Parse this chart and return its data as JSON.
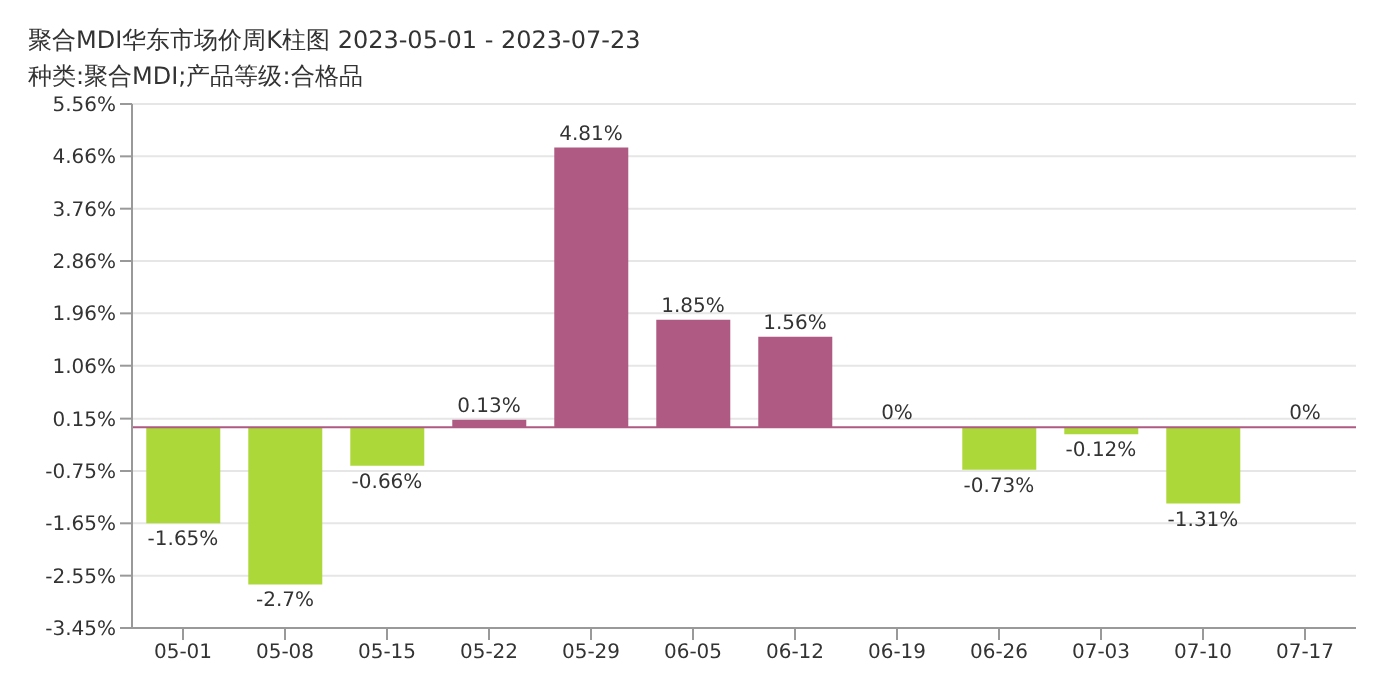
{
  "chart_data": {
    "type": "bar",
    "title": "聚合MDI华东市场价周K柱图 2023-05-01 - 2023-07-23",
    "subtitle": "种类:聚合MDI;产品等级:合格品",
    "categories": [
      "05-01",
      "05-08",
      "05-15",
      "05-22",
      "05-29",
      "06-05",
      "06-12",
      "06-19",
      "06-26",
      "07-03",
      "07-10",
      "07-17"
    ],
    "values": [
      -1.65,
      -2.7,
      -0.66,
      0.13,
      4.81,
      1.85,
      1.56,
      0,
      -0.73,
      -0.12,
      -1.31,
      0
    ],
    "colors": [
      "#add83a",
      "#add83a",
      "#add83a",
      "#ae5a82",
      "#ae5a82",
      "#ae5a82",
      "#ae5a82",
      "#ae5a82",
      "#add83a",
      "#add83a",
      "#add83a",
      "#ae5a82"
    ],
    "value_labels": [
      "-1.65%",
      "-2.7%",
      "-0.66%",
      "0.13%",
      "4.81%",
      "1.85%",
      "1.56%",
      "0%",
      "-0.73%",
      "-0.12%",
      "-1.31%",
      "0%"
    ],
    "ylim": [
      -3.45,
      5.56
    ],
    "yticks": [
      {
        "value": 5.56,
        "label": "5.56%"
      },
      {
        "value": 4.66,
        "label": "4.66%"
      },
      {
        "value": 3.76,
        "label": "3.76%"
      },
      {
        "value": 2.86,
        "label": "2.86%"
      },
      {
        "value": 1.96,
        "label": "1.96%"
      },
      {
        "value": 1.06,
        "label": "1.06%"
      },
      {
        "value": 0.15,
        "label": "0.15%"
      },
      {
        "value": -0.75,
        "label": "-0.75%"
      },
      {
        "value": -1.65,
        "label": "-1.65%"
      },
      {
        "value": -2.55,
        "label": "-2.55%"
      },
      {
        "value": -3.45,
        "label": "-3.45%"
      }
    ],
    "ref_lines": [
      {
        "axis": "y",
        "value": 0,
        "label": null,
        "color": "#ae5a82"
      }
    ],
    "grid": "y"
  }
}
